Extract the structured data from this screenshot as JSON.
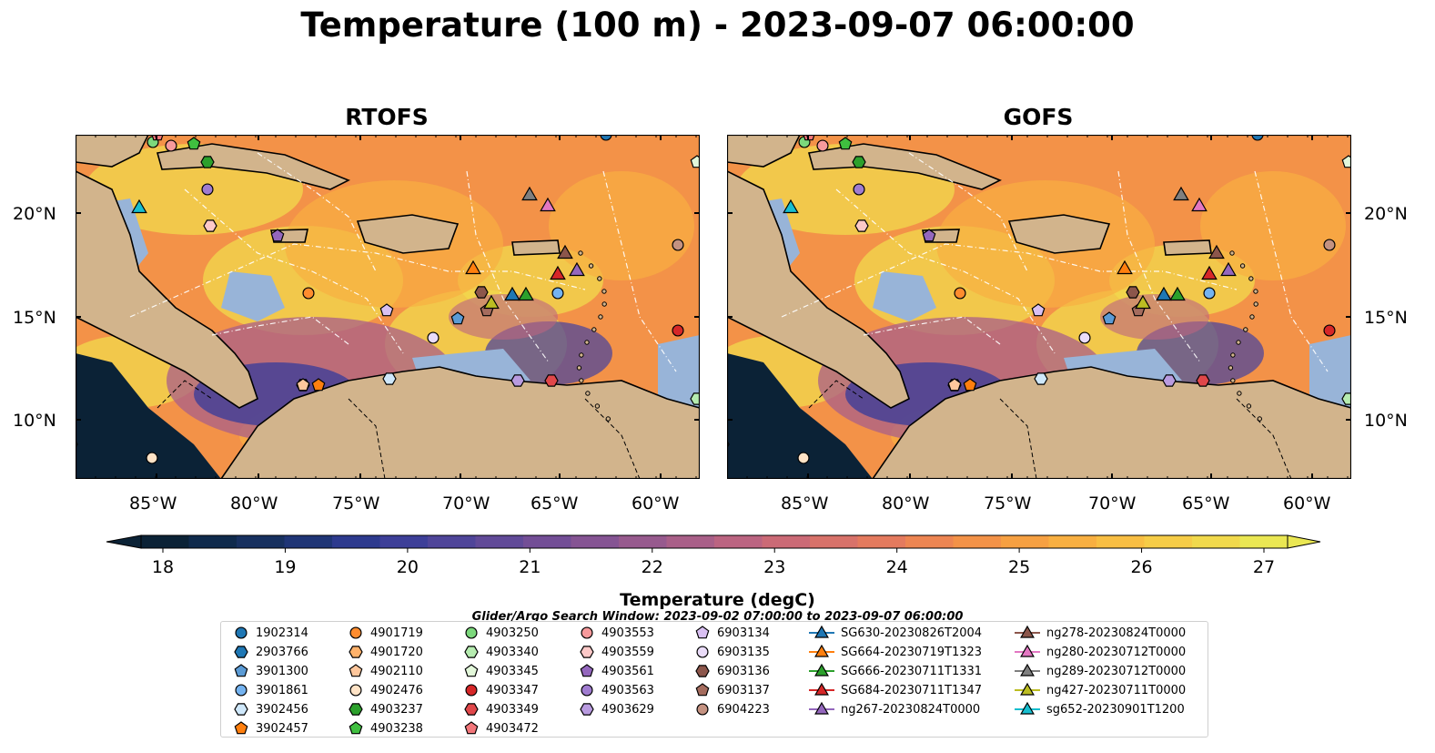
{
  "title": "Temperature (100 m) - 2023-09-07 06:00:00",
  "panels": [
    {
      "title": "RTOFS"
    },
    {
      "title": "GOFS"
    }
  ],
  "axes": {
    "lon_ticks": [
      "85°W",
      "80°W",
      "75°W",
      "70°W",
      "65°W",
      "60°W"
    ],
    "lat_ticks": [
      "20°N",
      "15°N",
      "10°N"
    ]
  },
  "colorbar": {
    "label": "Temperature (degC)",
    "ticks": [
      "18",
      "19",
      "20",
      "21",
      "22",
      "23",
      "24",
      "25",
      "26",
      "27"
    ],
    "range": [
      18,
      27
    ],
    "extend": "both",
    "colors": [
      "#0b2236",
      "#0f2a4c",
      "#17305f",
      "#1f3576",
      "#2d3a8e",
      "#3d3f98",
      "#4f4599",
      "#614a98",
      "#734e96",
      "#855493",
      "#975a8e",
      "#a95f88",
      "#bb6481",
      "#cb6a76",
      "#d8726a",
      "#e47a5e",
      "#ed8552",
      "#f39248",
      "#f6a042",
      "#f8af41",
      "#f8be43",
      "#f6cc47",
      "#f1d94c",
      "#eae753"
    ]
  },
  "search_window": "Glider/Argo Search Window: 2023-09-02 07:00:00 to 2023-09-07 06:00:00",
  "legend": {
    "columns": [
      [
        {
          "label": "1902314",
          "marker": "circle",
          "color": "#1f77b4"
        },
        {
          "label": "2903766",
          "marker": "hexagon",
          "color": "#1f77b4"
        },
        {
          "label": "3901300",
          "marker": "pentagon",
          "color": "#5b9bd5"
        },
        {
          "label": "3901861",
          "marker": "circle",
          "color": "#74b3f0"
        },
        {
          "label": "3902456",
          "marker": "hexagon",
          "color": "#cfe8fb"
        },
        {
          "label": "3902457",
          "marker": "pentagon",
          "color": "#ff7f0e"
        }
      ],
      [
        {
          "label": "4901719",
          "marker": "circle",
          "color": "#ff8c2e"
        },
        {
          "label": "4901720",
          "marker": "hexagon",
          "color": "#ffb26b"
        },
        {
          "label": "4902110",
          "marker": "pentagon",
          "color": "#ffc79c"
        },
        {
          "label": "4902476",
          "marker": "circle",
          "color": "#ffe3c6"
        },
        {
          "label": "4903237",
          "marker": "hexagon",
          "color": "#2ca02c"
        },
        {
          "label": "4903238",
          "marker": "pentagon",
          "color": "#3fbf3f"
        }
      ],
      [
        {
          "label": "4903250",
          "marker": "circle",
          "color": "#7cd87c"
        },
        {
          "label": "4903340",
          "marker": "hexagon",
          "color": "#b6ecb0"
        },
        {
          "label": "4903345",
          "marker": "pentagon",
          "color": "#e3f8da"
        },
        {
          "label": "4903347",
          "marker": "circle",
          "color": "#d62728"
        },
        {
          "label": "4903349",
          "marker": "hexagon",
          "color": "#e0474a"
        },
        {
          "label": "4903472",
          "marker": "pentagon",
          "color": "#f2767a"
        }
      ],
      [
        {
          "label": "4903553",
          "marker": "circle",
          "color": "#f79a9c"
        },
        {
          "label": "4903559",
          "marker": "hexagon",
          "color": "#fcc9c8"
        },
        {
          "label": "4903561",
          "marker": "pentagon",
          "color": "#9467bd"
        },
        {
          "label": "4903563",
          "marker": "circle",
          "color": "#a07cd0"
        },
        {
          "label": "4903629",
          "marker": "hexagon",
          "color": "#b99be0"
        }
      ],
      [
        {
          "label": "6903134",
          "marker": "pentagon",
          "color": "#d9c0f2"
        },
        {
          "label": "6903135",
          "marker": "circle",
          "color": "#eadcf9"
        },
        {
          "label": "6903136",
          "marker": "hexagon",
          "color": "#8c564b"
        },
        {
          "label": "6903137",
          "marker": "pentagon",
          "color": "#a56c5e"
        },
        {
          "label": "6904223",
          "marker": "circle",
          "color": "#c49281"
        }
      ],
      [
        {
          "label": "SG630-20230826T2004",
          "marker": "triangle",
          "color": "#1f77b4"
        },
        {
          "label": "SG664-20230719T1323",
          "marker": "triangle",
          "color": "#ff7f0e"
        },
        {
          "label": "SG666-20230711T1331",
          "marker": "triangle",
          "color": "#2ca02c"
        },
        {
          "label": "SG684-20230711T1347",
          "marker": "triangle",
          "color": "#d62728"
        },
        {
          "label": "ng267-20230824T0000",
          "marker": "triangle",
          "color": "#9467bd"
        }
      ],
      [
        {
          "label": "ng278-20230824T0000",
          "marker": "triangle",
          "color": "#8c564b"
        },
        {
          "label": "ng280-20230712T0000",
          "marker": "triangle",
          "color": "#e377c2"
        },
        {
          "label": "ng289-20230712T0000",
          "marker": "triangle",
          "color": "#7f7f7f"
        },
        {
          "label": "ng427-20230711T0000",
          "marker": "triangle",
          "color": "#bcbd22"
        },
        {
          "label": "sg652-20230901T1200",
          "marker": "triangle",
          "color": "#17becf"
        }
      ]
    ]
  },
  "map_colors": {
    "land": "#d2b48c",
    "shallow": "#98b4d8",
    "coast": "#000000"
  }
}
